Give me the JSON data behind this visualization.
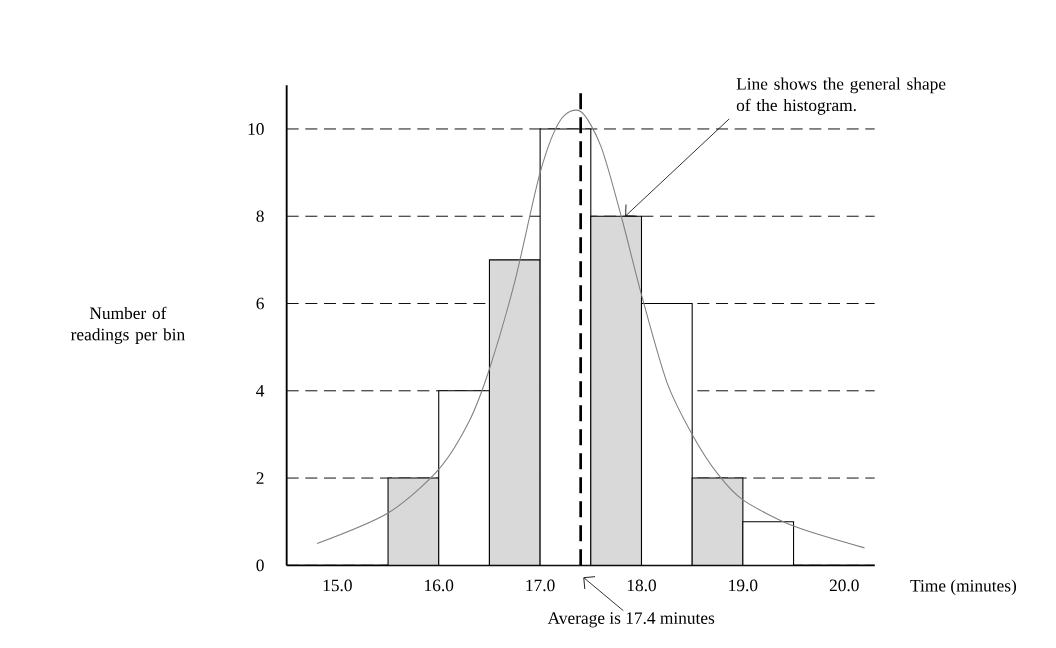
{
  "chart_data": {
    "type": "histogram",
    "xlabel": "Time (minutes)",
    "ylabel": "Number of readings per bin",
    "bins": [
      15.5,
      16.0,
      16.5,
      17.0,
      17.5,
      18.0,
      18.5,
      19.0,
      19.5
    ],
    "values": [
      2,
      4,
      7,
      10,
      8,
      6,
      2,
      1
    ],
    "colors": [
      "#d9d9d9",
      "#ffffff",
      "#d9d9d9",
      "#ffffff",
      "#d9d9d9",
      "#ffffff",
      "#d9d9d9",
      "#ffffff"
    ],
    "xlim": [
      14.5,
      20.3
    ],
    "ylim": [
      0,
      11
    ],
    "xticks": [
      {
        "value": 15,
        "label": "15.0"
      },
      {
        "value": 16,
        "label": "16.0"
      },
      {
        "value": 17,
        "label": "17.0"
      },
      {
        "value": 18,
        "label": "18.0"
      },
      {
        "value": 19,
        "label": "19.0"
      },
      {
        "value": 20,
        "label": "20.0"
      }
    ],
    "yticks": [
      0,
      2,
      4,
      6,
      8,
      10
    ],
    "grid": "y",
    "ref_lines": [
      {
        "axis": "x",
        "value": 17.4,
        "label": "Average is 17.4 minutes",
        "line_style": "dashed",
        "color": "#000000"
      }
    ],
    "series": [
      {
        "type": "line",
        "color": "#808080",
        "x": [
          14.8,
          15.5,
          16.0,
          16.3,
          16.5,
          16.75,
          17.0,
          17.2,
          17.4,
          17.6,
          17.8,
          18.0,
          18.25,
          18.5,
          18.75,
          19.0,
          19.5,
          20.2
        ],
        "values": [
          0.5,
          1.2,
          2.2,
          3.3,
          4.5,
          6.5,
          9.0,
          10.2,
          10.4,
          9.6,
          8.0,
          6.2,
          4.2,
          3.0,
          2.1,
          1.5,
          0.9,
          0.4
        ]
      }
    ],
    "annotations": [
      {
        "text": "Line shows the general shape of the histogram.",
        "x": 17.8,
        "y": 8
      }
    ]
  }
}
